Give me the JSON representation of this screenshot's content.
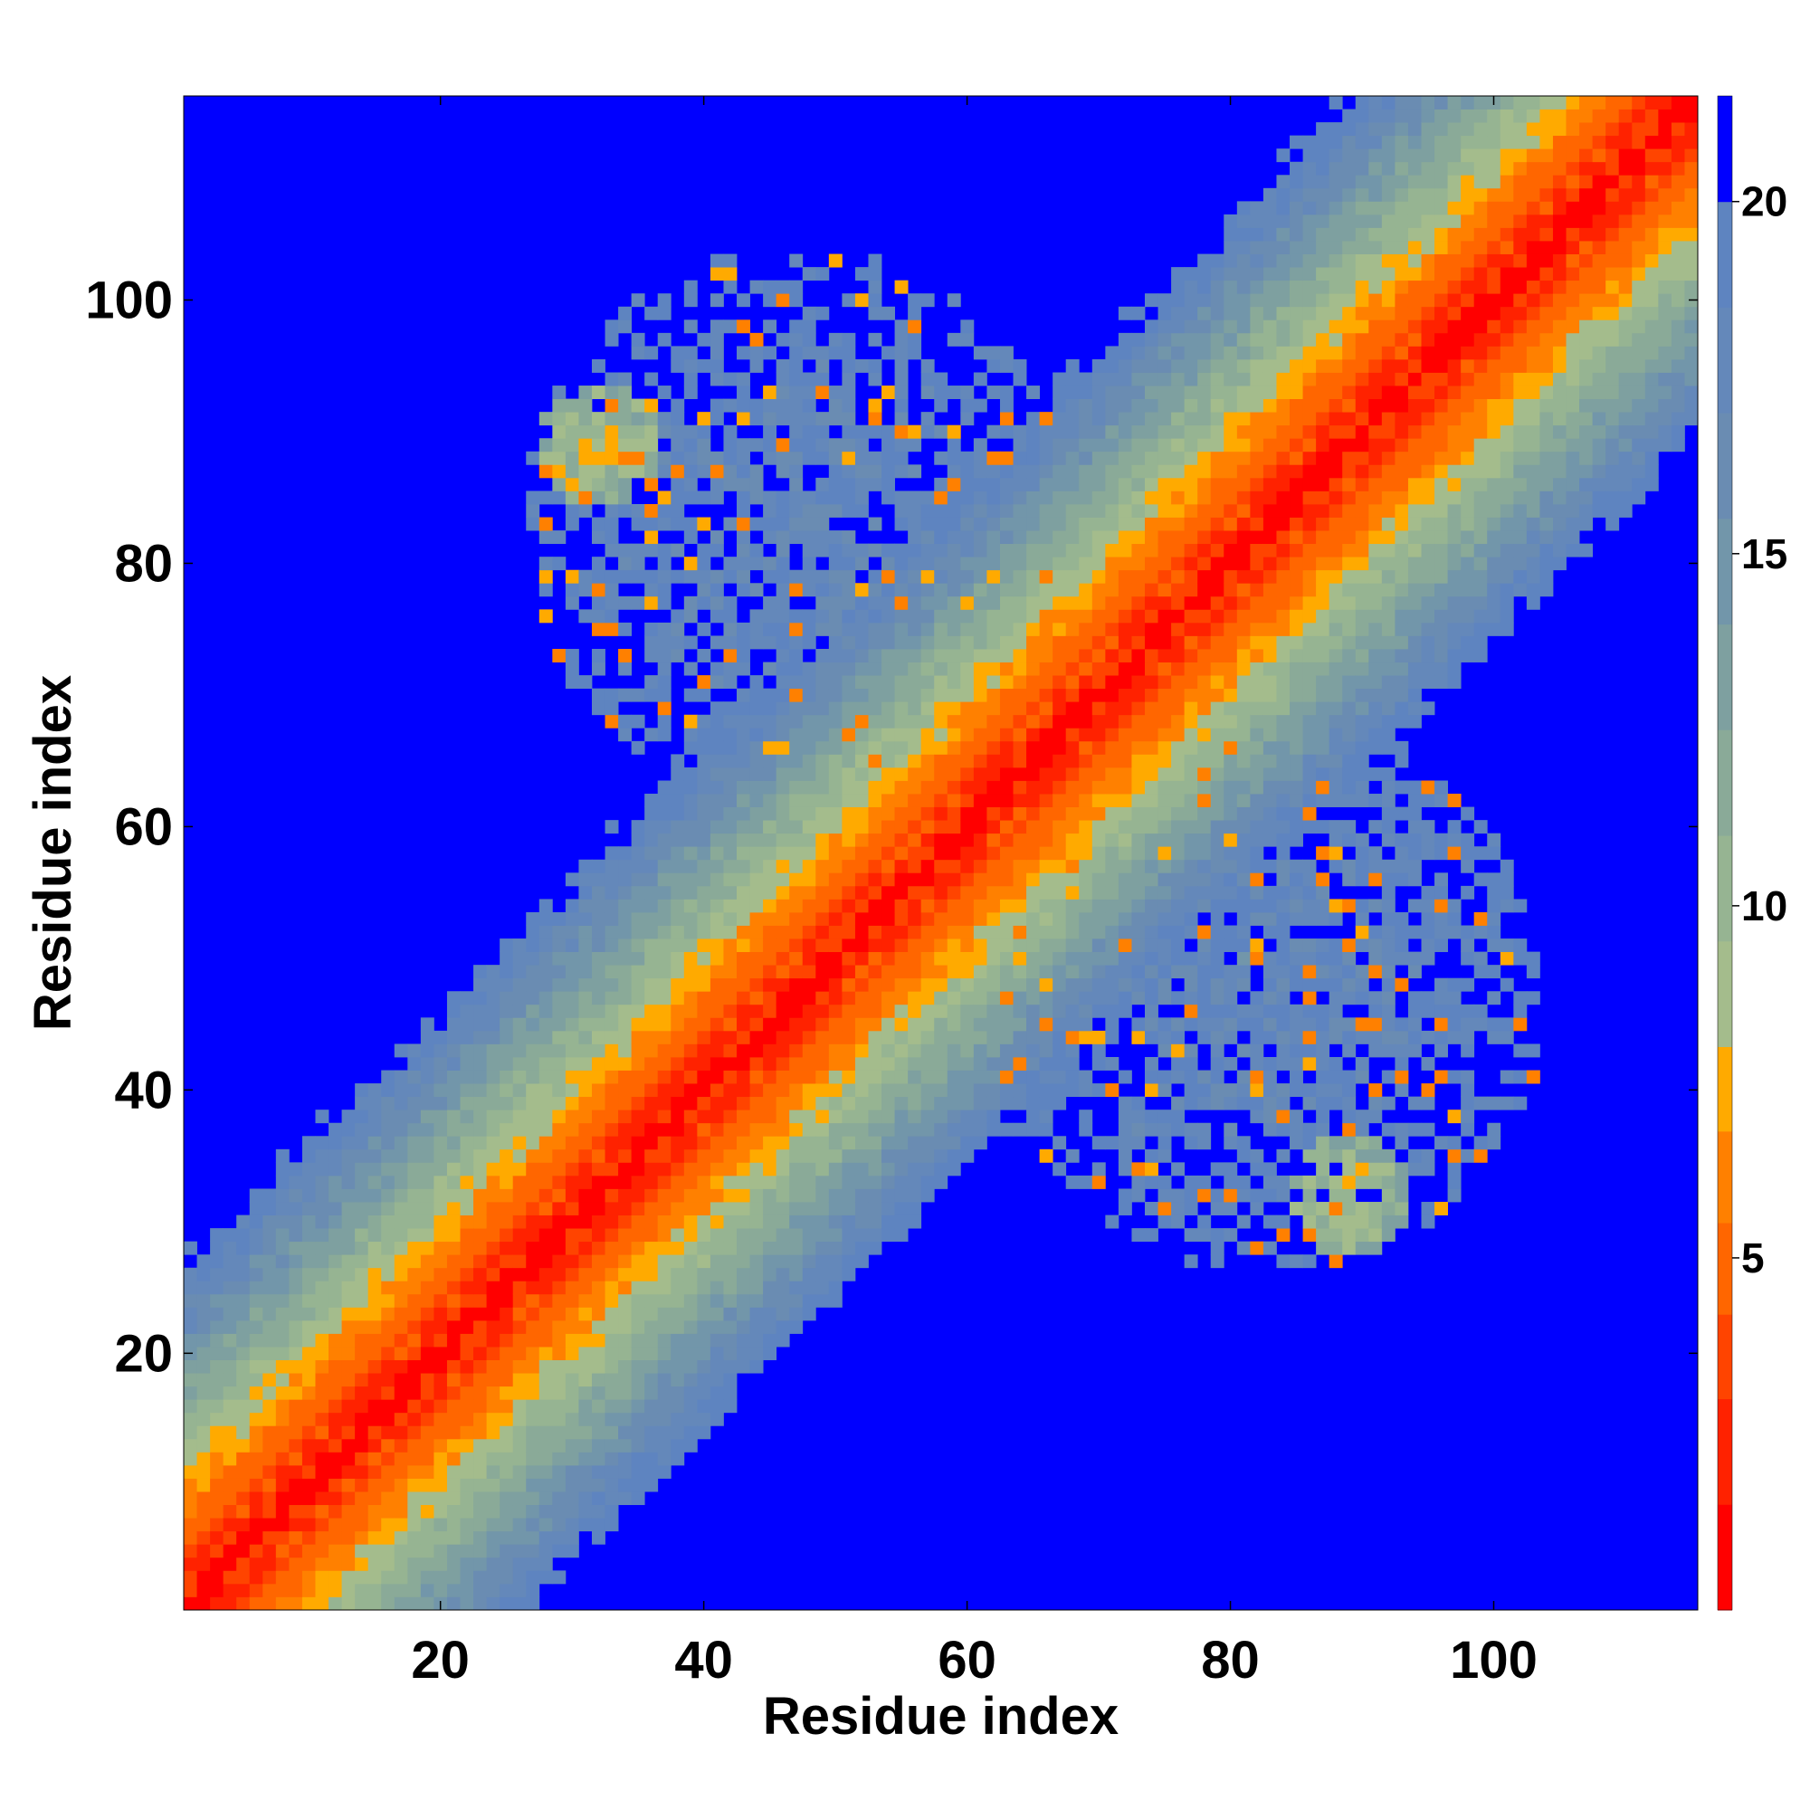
{
  "chart_data": {
    "type": "heatmap",
    "title": "",
    "xlabel": "Residue index",
    "ylabel": "Residue index",
    "n_residues": 115,
    "xlim": [
      1,
      115
    ],
    "ylim": [
      1,
      115
    ],
    "x_ticks": [
      20,
      40,
      60,
      80,
      100
    ],
    "y_ticks": [
      20,
      40,
      60,
      80,
      100
    ],
    "colorbar": {
      "range": [
        0,
        21.5
      ],
      "ticks": [
        5,
        10,
        15,
        20
      ],
      "levels": [
        {
          "max": 1.5,
          "color": "#ff0000"
        },
        {
          "max": 3.0,
          "color": "#ff2200"
        },
        {
          "max": 4.2,
          "color": "#ff4400"
        },
        {
          "max": 5.5,
          "color": "#ff6600"
        },
        {
          "max": 6.8,
          "color": "#ff8000"
        },
        {
          "max": 8.0,
          "color": "#ffaa00"
        },
        {
          "max": 9.5,
          "color": "#a4bc8c"
        },
        {
          "max": 11.0,
          "color": "#96b492"
        },
        {
          "max": 12.5,
          "color": "#8aaa98"
        },
        {
          "max": 14.0,
          "color": "#7ea0a0"
        },
        {
          "max": 15.5,
          "color": "#7296aa"
        },
        {
          "max": 17.0,
          "color": "#6a8cb2"
        },
        {
          "max": 18.5,
          "color": "#6488ba"
        },
        {
          "max": 20.0,
          "color": "#5e84c0"
        },
        {
          "max": 99,
          "color": "#0000ff"
        }
      ]
    },
    "diagonal_band": {
      "description_values": "distance grows with |i-j|",
      "slope": 0.75,
      "offset": 0.5
    },
    "contact_regions": [
      {
        "i_range": [
          62,
          104
        ],
        "j_range": [
          26,
          68
        ],
        "center_i": 83,
        "center_j": 47,
        "base_value": 17.5
      },
      {
        "i_range": [
          26,
          68
        ],
        "j_range": [
          62,
          104
        ],
        "center_i": 47,
        "center_j": 83,
        "base_value": 17.5
      },
      {
        "i_range": [
          28,
          38
        ],
        "j_range": [
          85,
          95
        ],
        "center_i": 32,
        "center_j": 89,
        "base_value": 9.0
      },
      {
        "i_range": [
          85,
          95
        ],
        "j_range": [
          28,
          38
        ],
        "center_i": 89,
        "center_j": 32,
        "base_value": 9.0
      }
    ]
  }
}
